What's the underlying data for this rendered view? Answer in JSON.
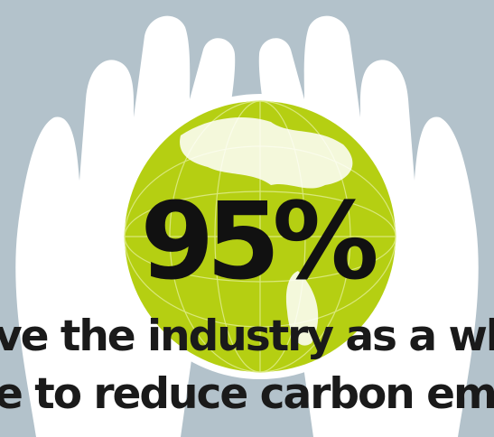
{
  "headline": "95%",
  "lines": [
    "ve the industry as a wh",
    "e to reduce carbon em"
  ]
}
